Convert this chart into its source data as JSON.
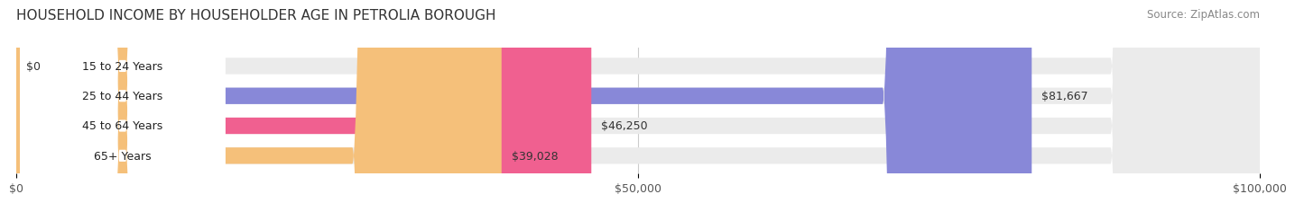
{
  "title": "HOUSEHOLD INCOME BY HOUSEHOLDER AGE IN PETROLIA BOROUGH",
  "source": "Source: ZipAtlas.com",
  "categories": [
    "15 to 24 Years",
    "25 to 44 Years",
    "45 to 64 Years",
    "65+ Years"
  ],
  "values": [
    0,
    81667,
    46250,
    39028
  ],
  "bar_colors": [
    "#5ecfbf",
    "#8888d8",
    "#f06090",
    "#f5c07a"
  ],
  "label_texts": [
    "$0",
    "$81,667",
    "$46,250",
    "$39,028"
  ],
  "xmax": 100000,
  "xticks": [
    0,
    50000,
    100000
  ],
  "xtick_labels": [
    "$0",
    "$50,000",
    "$100,000"
  ],
  "bg_color": "#ffffff",
  "title_fontsize": 11,
  "source_fontsize": 8.5,
  "label_fontsize": 9,
  "tick_fontsize": 9
}
